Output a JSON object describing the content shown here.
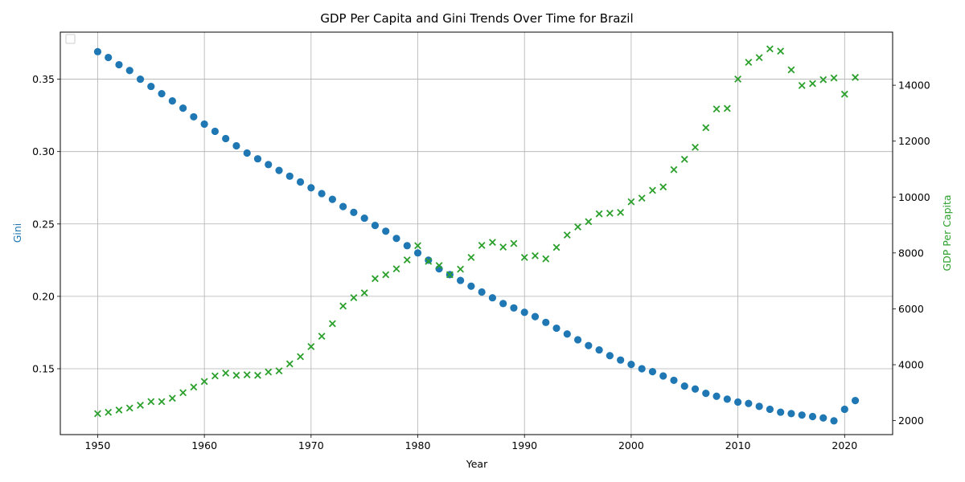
{
  "chart_data": {
    "type": "scatter",
    "title": "GDP Per Capita and Gini Trends Over Time for Brazil",
    "xlabel": "Year",
    "ylabel_left": "Gini",
    "ylabel_right": "GDP Per Capita",
    "xlim": [
      1946.5,
      2024.5
    ],
    "ylim_left": [
      0.1045,
      0.3825
    ],
    "ylim_right": [
      1500,
      15900
    ],
    "x_ticks": [
      1950,
      1960,
      1970,
      1980,
      1990,
      2000,
      2010,
      2020
    ],
    "y_left_ticks": [
      0.15,
      0.2,
      0.25,
      0.3,
      0.35
    ],
    "y_left_tick_labels": [
      "0.15",
      "0.20",
      "0.25",
      "0.30",
      "0.35"
    ],
    "y_right_ticks": [
      2000,
      4000,
      6000,
      8000,
      10000,
      12000,
      14000
    ],
    "y_right_tick_labels": [
      "2000",
      "4000",
      "6000",
      "8000",
      "10000",
      "12000",
      "14000"
    ],
    "grid": true,
    "legend": "top-left (empty)",
    "colors": {
      "gini": "#1f77b4",
      "gdp": "#2ca02c",
      "grid": "#b0b0b0"
    },
    "x": [
      1950,
      1951,
      1952,
      1953,
      1954,
      1955,
      1956,
      1957,
      1958,
      1959,
      1960,
      1961,
      1962,
      1963,
      1964,
      1965,
      1966,
      1967,
      1968,
      1969,
      1970,
      1971,
      1972,
      1973,
      1974,
      1975,
      1976,
      1977,
      1978,
      1979,
      1980,
      1981,
      1982,
      1983,
      1984,
      1985,
      1986,
      1987,
      1988,
      1989,
      1990,
      1991,
      1992,
      1993,
      1994,
      1995,
      1996,
      1997,
      1998,
      1999,
      2000,
      2001,
      2002,
      2003,
      2004,
      2005,
      2006,
      2007,
      2008,
      2009,
      2010,
      2011,
      2012,
      2013,
      2014,
      2015,
      2016,
      2017,
      2018,
      2019,
      2020,
      2021
    ],
    "series": [
      {
        "name": "",
        "axis": "left",
        "marker": "circle",
        "values": [
          0.369,
          0.365,
          0.36,
          0.356,
          0.35,
          0.345,
          0.34,
          0.335,
          0.33,
          0.324,
          0.319,
          0.314,
          0.309,
          0.304,
          0.299,
          0.295,
          0.291,
          0.287,
          0.283,
          0.279,
          0.275,
          0.271,
          0.267,
          0.262,
          0.258,
          0.254,
          0.249,
          0.245,
          0.24,
          0.235,
          0.23,
          0.225,
          0.219,
          0.215,
          0.211,
          0.207,
          0.203,
          0.199,
          0.195,
          0.192,
          0.189,
          0.186,
          0.182,
          0.178,
          0.174,
          0.17,
          0.166,
          0.163,
          0.159,
          0.156,
          0.153,
          0.15,
          0.148,
          0.145,
          0.142,
          0.138,
          0.136,
          0.133,
          0.131,
          0.129,
          0.127,
          0.126,
          0.124,
          0.122,
          0.12,
          0.119,
          0.118,
          0.117,
          0.116,
          0.114,
          0.122,
          0.128
        ]
      },
      {
        "name": "",
        "axis": "right",
        "marker": "x",
        "values": [
          2250,
          2300,
          2380,
          2450,
          2550,
          2680,
          2680,
          2800,
          3000,
          3200,
          3400,
          3600,
          3700,
          3620,
          3640,
          3620,
          3740,
          3780,
          4030,
          4290,
          4650,
          5020,
          5470,
          6100,
          6400,
          6570,
          7080,
          7220,
          7430,
          7750,
          8260,
          7700,
          7550,
          7220,
          7420,
          7840,
          8270,
          8380,
          8210,
          8340,
          7840,
          7900,
          7790,
          8200,
          8640,
          8930,
          9120,
          9400,
          9420,
          9450,
          9830,
          9960,
          10240,
          10360,
          10980,
          11350,
          11780,
          12480,
          13150,
          13170,
          14220,
          14820,
          14990,
          15300,
          15220,
          14550,
          13990,
          14060,
          14200,
          14260,
          13680,
          14280
        ]
      }
    ]
  }
}
